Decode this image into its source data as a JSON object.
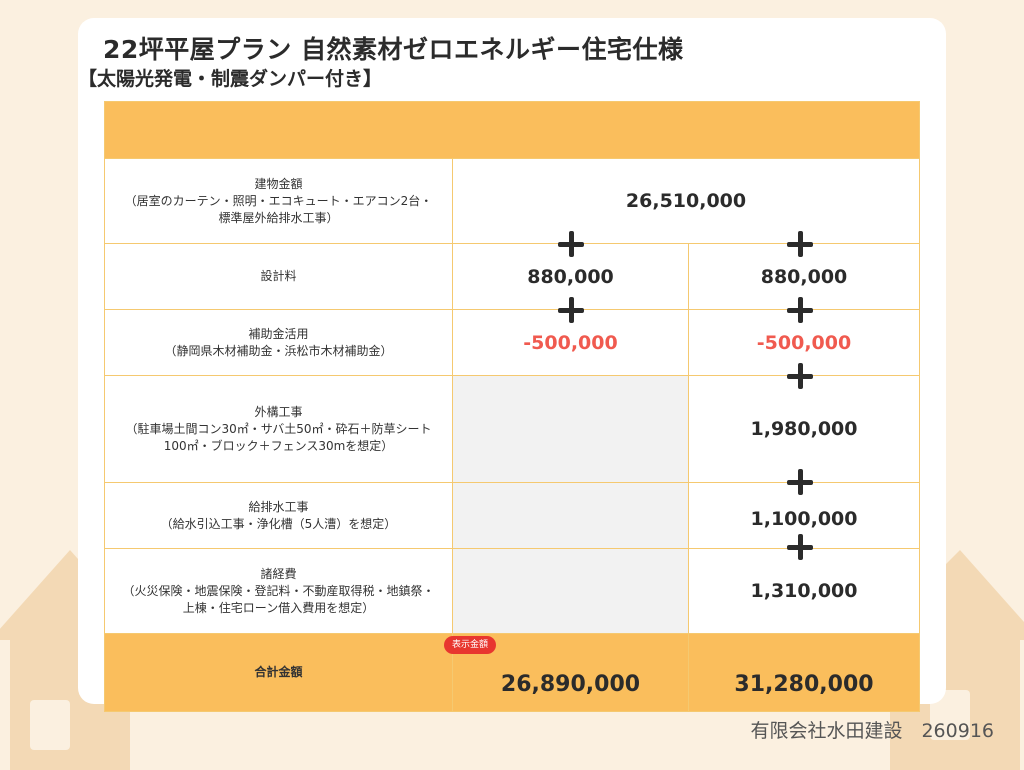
{
  "title": "22坪平屋プラン 自然素材ゼロエネルギー住宅仕様",
  "subtitle": "【太陽光発電・制震ダンパー付き】",
  "rows": [
    {
      "label": "建物金額\n（居室のカーテン・照明・エコキュート・エアコン2台・標準屋外給排水工事）",
      "plan_a": "26,510,000",
      "plan_b": ""
    },
    {
      "label": "設計料",
      "plan_a": "880,000",
      "plan_b": "880,000"
    },
    {
      "label": "補助金活用\n（静岡県木材補助金・浜松市木材補助金）",
      "plan_a": "-500,000",
      "plan_b": "-500,000"
    },
    {
      "label": "外構工事\n（駐車場土間コン30㎡・サバ土50㎡・砕石＋防草シート100㎡・ブロック＋フェンス30mを想定）",
      "plan_a": "",
      "plan_b": "1,980,000"
    },
    {
      "label": "給排水工事\n（給水引込工事・浄化槽（5人漕）を想定）",
      "plan_a": "",
      "plan_b": "1,100,000"
    },
    {
      "label": "諸経費\n（火災保険・地震保険・登記料・不動産取得税・地鎮祭・上棟・住宅ローン借入費用を想定）",
      "plan_a": "",
      "plan_b": "1,310,000"
    }
  ],
  "total": {
    "label": "合計金額",
    "badge": "表示金額",
    "plan_a": "26,890,000",
    "plan_b": "31,280,000"
  },
  "footer": "有限会社水田建設　260916",
  "colors": {
    "header": "#FABE5C",
    "negative": "#F05A4F",
    "badge": "#E8362F",
    "background": "#FBF0E0"
  },
  "icons": [
    "house-icon",
    "plus-icon"
  ]
}
